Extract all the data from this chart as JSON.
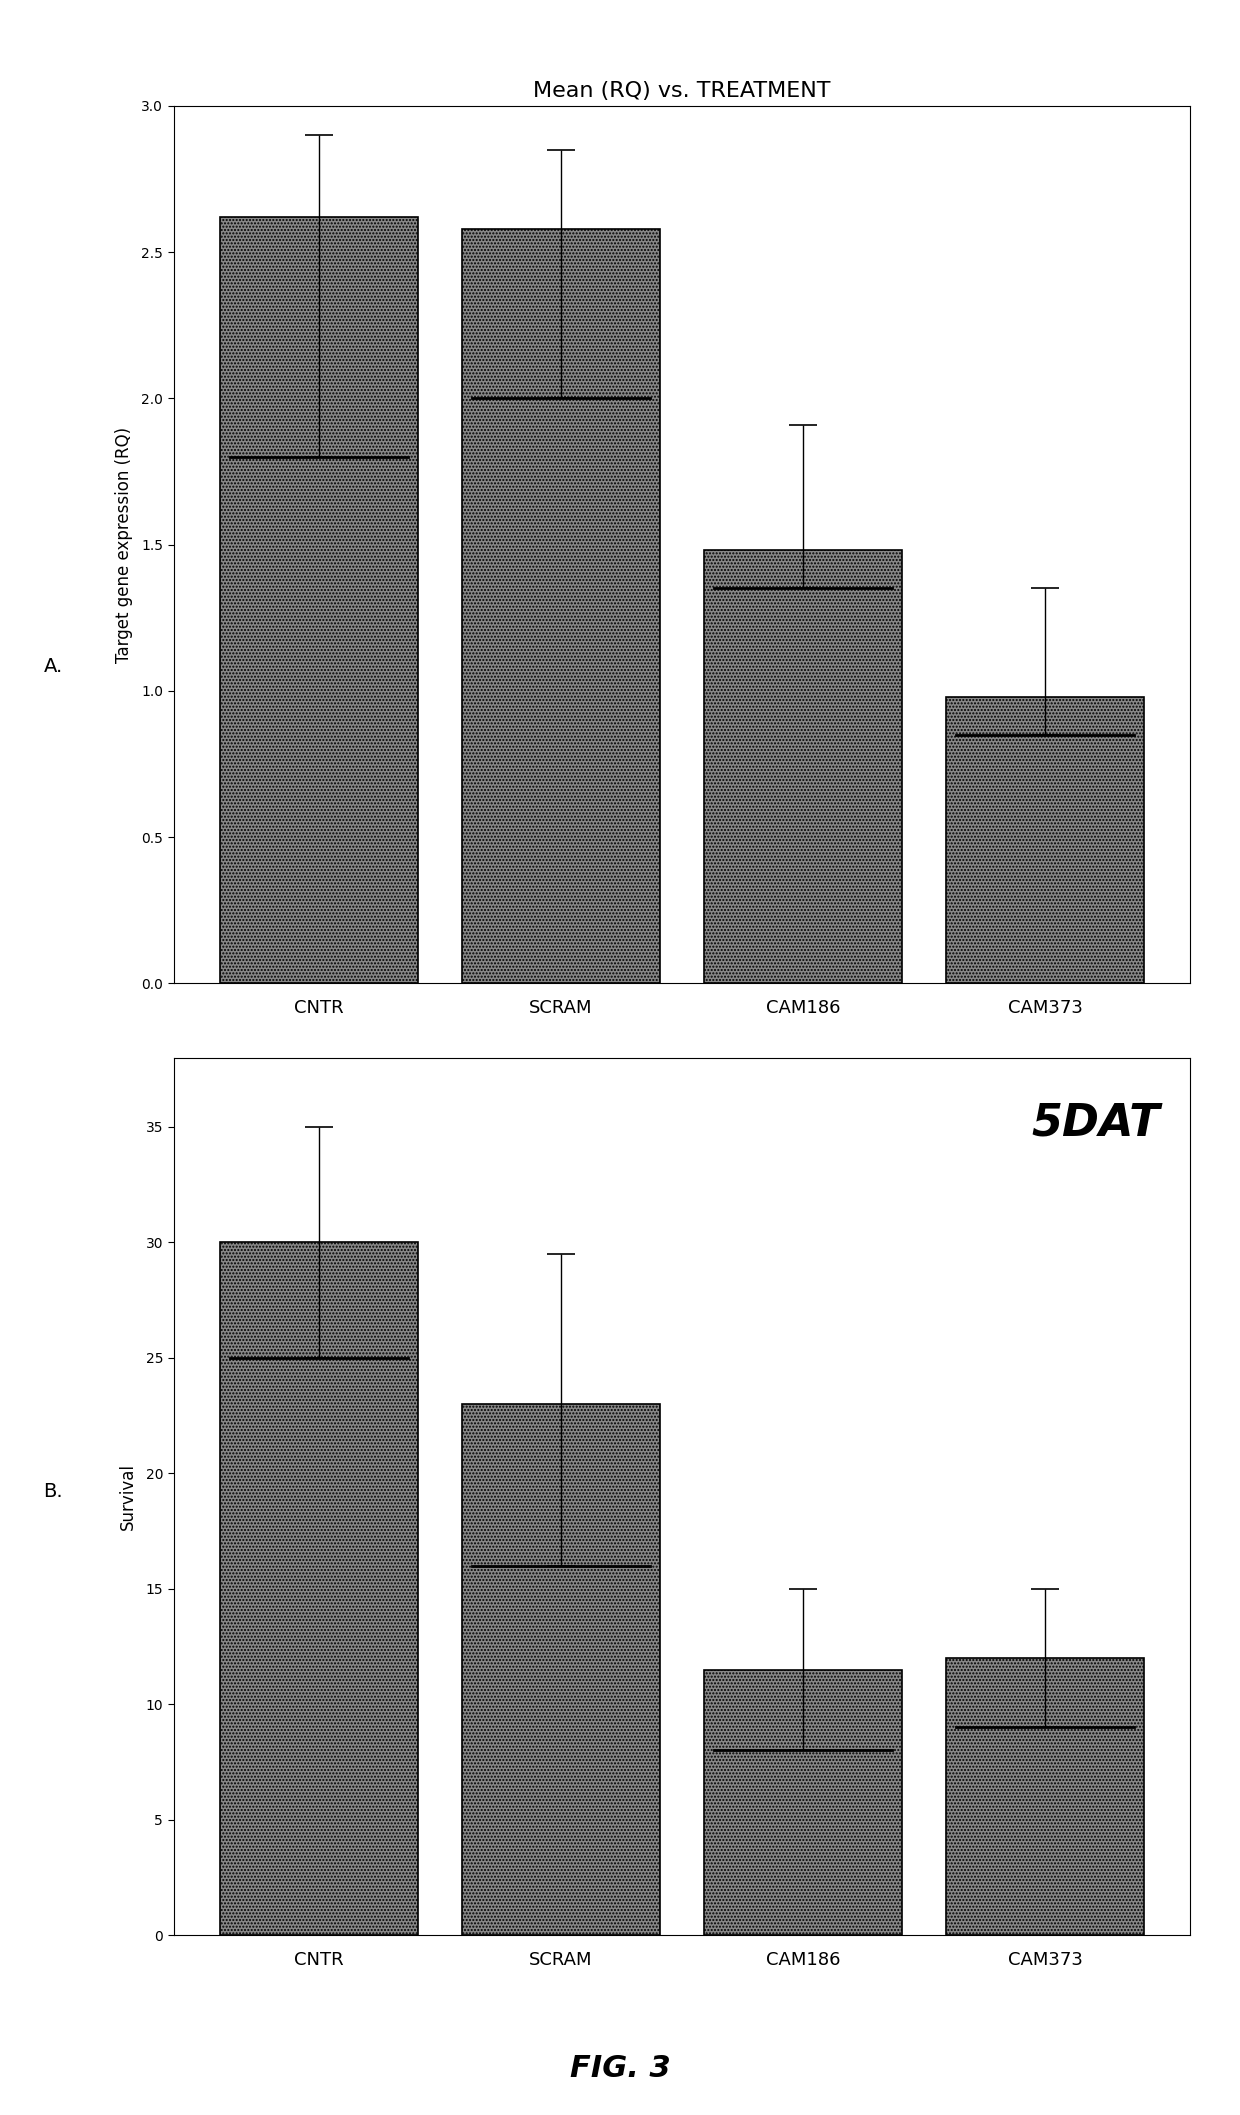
{
  "chart_a": {
    "title": "Mean (RQ) vs. TREATMENT",
    "ylabel": "Target gene expression (RQ)",
    "categories": [
      "CNTR",
      "SCRAM",
      "CAM186",
      "CAM373"
    ],
    "values": [
      2.62,
      2.58,
      1.48,
      0.98
    ],
    "errors_low": [
      0.82,
      0.58,
      0.13,
      0.13
    ],
    "errors_high": [
      0.28,
      0.27,
      0.43,
      0.37
    ],
    "median_lines": [
      1.8,
      2.0,
      1.35,
      0.85
    ],
    "ylim": [
      0.0,
      3.0
    ],
    "yticks": [
      0.0,
      0.5,
      1.0,
      1.5,
      2.0,
      2.5,
      3.0
    ],
    "bar_color": "#888888",
    "bar_edgecolor": "#000000",
    "label": "A."
  },
  "chart_b": {
    "ylabel": "Survival",
    "annotation": "5DAT",
    "categories": [
      "CNTR",
      "SCRAM",
      "CAM186",
      "CAM373"
    ],
    "values": [
      30.0,
      23.0,
      11.5,
      12.0
    ],
    "errors_low": [
      5.0,
      7.0,
      3.5,
      3.0
    ],
    "errors_high": [
      5.0,
      6.5,
      3.5,
      3.0
    ],
    "median_lines": [
      25.0,
      16.0,
      8.0,
      9.0
    ],
    "ylim": [
      0,
      38
    ],
    "yticks": [
      0,
      5,
      10,
      15,
      20,
      25,
      30,
      35
    ],
    "bar_color": "#888888",
    "bar_edgecolor": "#000000",
    "label": "B."
  },
  "fig_label": "FIG. 3",
  "background_color": "#ffffff",
  "bar_width": 0.82
}
